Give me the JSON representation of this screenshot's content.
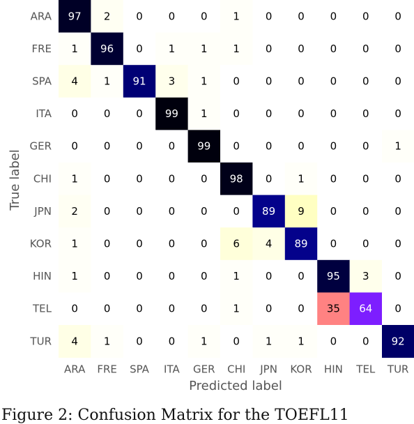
{
  "chart_data": {
    "type": "heatmap",
    "xlabel": "Predicted label",
    "ylabel": "True label",
    "x_categories": [
      "ARA",
      "FRE",
      "SPA",
      "ITA",
      "GER",
      "CHI",
      "JPN",
      "KOR",
      "HIN",
      "TEL",
      "TUR"
    ],
    "y_categories": [
      "ARA",
      "FRE",
      "SPA",
      "ITA",
      "GER",
      "CHI",
      "JPN",
      "KOR",
      "HIN",
      "TEL",
      "TUR"
    ],
    "values": [
      [
        97,
        2,
        0,
        0,
        0,
        1,
        0,
        0,
        0,
        0,
        0
      ],
      [
        1,
        96,
        0,
        1,
        1,
        1,
        0,
        0,
        0,
        0,
        0
      ],
      [
        4,
        1,
        91,
        3,
        1,
        0,
        0,
        0,
        0,
        0,
        0
      ],
      [
        0,
        0,
        0,
        99,
        1,
        0,
        0,
        0,
        0,
        0,
        0
      ],
      [
        0,
        0,
        0,
        0,
        99,
        0,
        0,
        0,
        0,
        0,
        1
      ],
      [
        1,
        0,
        0,
        0,
        0,
        98,
        0,
        1,
        0,
        0,
        0
      ],
      [
        2,
        0,
        0,
        0,
        0,
        0,
        89,
        9,
        0,
        0,
        0
      ],
      [
        1,
        0,
        0,
        0,
        0,
        6,
        4,
        89,
        0,
        0,
        0
      ],
      [
        1,
        0,
        0,
        0,
        0,
        1,
        0,
        0,
        95,
        3,
        0
      ],
      [
        0,
        0,
        0,
        0,
        0,
        1,
        0,
        0,
        35,
        64,
        0
      ],
      [
        4,
        1,
        0,
        0,
        1,
        0,
        1,
        1,
        0,
        0,
        92
      ]
    ],
    "colormap": "gnuplot2_r",
    "grid": false
  },
  "caption": "Figure 2: Confusion Matrix for the TOEFL11"
}
